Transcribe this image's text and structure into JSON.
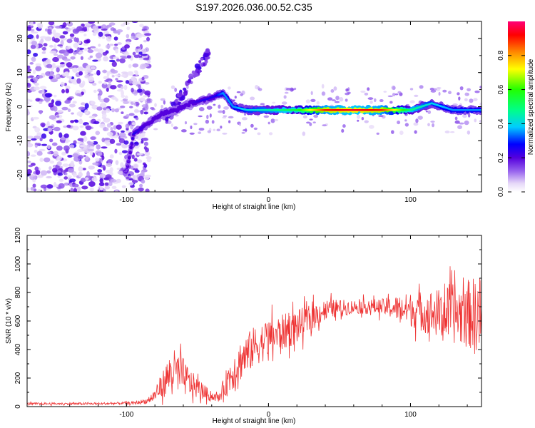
{
  "chart_data": [
    {
      "type": "heatmap",
      "title": "S197.2026.036.00.52.C35",
      "xlabel": "Height of straight line (km)",
      "ylabel": "Frequency (Hz)",
      "xlim": [
        -170,
        150
      ],
      "ylim": [
        -25,
        25
      ],
      "xticks": [
        -100,
        0,
        100
      ],
      "yticks": [
        -20,
        -10,
        0,
        10,
        20
      ],
      "colorbar": {
        "label": "Normalized spectral amplitude",
        "range": [
          0,
          1
        ],
        "ticks": [
          "0.0",
          "0.2",
          "0.4",
          "0.6",
          "0.8"
        ]
      },
      "ridge": {
        "description_points_x": [
          -100,
          -95,
          -85,
          -75,
          -65,
          -55,
          -45,
          -38,
          -32,
          -25,
          -15,
          0,
          20,
          40,
          60,
          80,
          100,
          115,
          130,
          150
        ],
        "frequency_hz": [
          -19,
          -8,
          -5,
          -2,
          -1,
          1,
          2,
          3,
          4,
          0,
          -1,
          -1,
          -1,
          -1,
          -1,
          -1,
          -1,
          1,
          -1,
          -1
        ],
        "amplitude": [
          0.15,
          0.25,
          0.2,
          0.2,
          0.2,
          0.2,
          0.25,
          0.25,
          0.35,
          0.35,
          0.4,
          0.45,
          0.55,
          0.9,
          0.95,
          0.9,
          0.5,
          0.4,
          0.35,
          0.35
        ]
      },
      "noise_region_x": [
        -170,
        -90
      ]
    },
    {
      "type": "line",
      "title": "",
      "xlabel": "Height of straight line (km)",
      "ylabel": "SNR (10 * v/v)",
      "xlim": [
        -170,
        150
      ],
      "ylim": [
        0,
        1200
      ],
      "xticks": [
        -100,
        0,
        100
      ],
      "yticks": [
        0,
        200,
        400,
        600,
        800,
        1000,
        1200
      ],
      "color": "#ee3333",
      "envelope": {
        "x": [
          -170,
          -120,
          -95,
          -85,
          -80,
          -75,
          -68,
          -62,
          -55,
          -48,
          -42,
          -35,
          -28,
          -20,
          -10,
          0,
          20,
          40,
          60,
          80,
          100,
          120,
          140,
          150
        ],
        "mean": [
          20,
          20,
          25,
          40,
          80,
          150,
          250,
          230,
          160,
          120,
          80,
          60,
          200,
          320,
          420,
          480,
          560,
          680,
          700,
          700,
          680,
          650,
          650,
          650
        ],
        "spread": [
          10,
          10,
          12,
          25,
          60,
          110,
          200,
          180,
          120,
          80,
          50,
          30,
          150,
          180,
          180,
          170,
          150,
          90,
          60,
          70,
          150,
          220,
          300,
          350
        ]
      }
    }
  ]
}
